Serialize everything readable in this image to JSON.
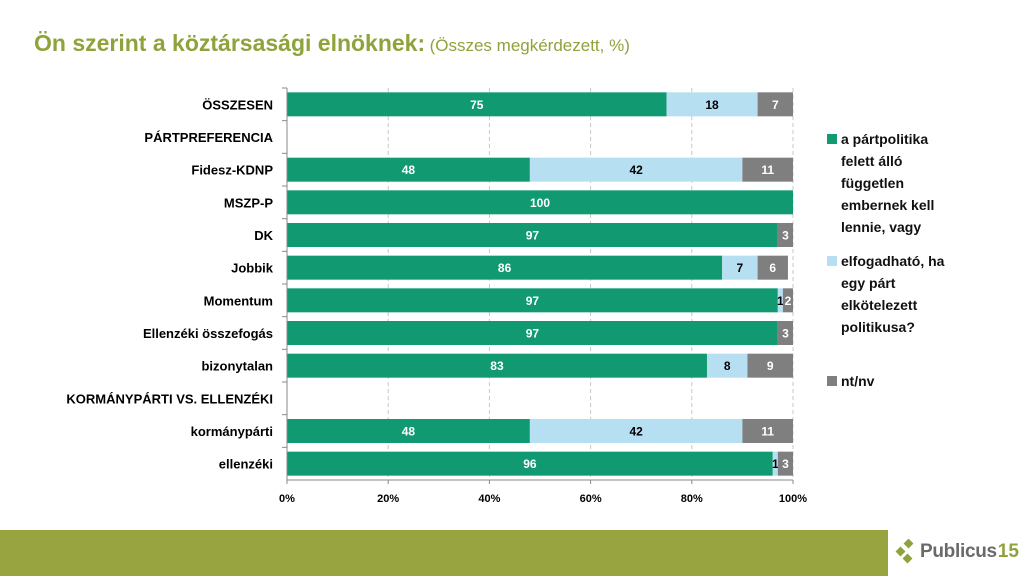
{
  "title": {
    "main": "Ön szerint a köztársasági elnöknek:",
    "sub": "(Összes megkérdezett, %)"
  },
  "colors": {
    "series1": "#119a72",
    "series2": "#b6dff2",
    "series3": "#7f7f7f",
    "title": "#8ea33c",
    "footer": "#98a43f"
  },
  "chart_data": {
    "type": "bar",
    "orientation": "horizontal",
    "stacked": "100%",
    "title": "Ön szerint a köztársasági elnöknek: (Összes megkérdezett, %)",
    "xlabel": "",
    "ylabel": "",
    "xlim": [
      0,
      100
    ],
    "grid": "vertical dashed",
    "legend_position": "right",
    "x_ticks": [
      "0%",
      "20%",
      "40%",
      "60%",
      "80%",
      "100%"
    ],
    "categories": [
      "ÖSSZESEN",
      "PÁRTPREFERENCIA",
      "Fidesz-KDNP",
      "MSZP-P",
      "DK",
      "Jobbik",
      "Momentum",
      "Ellenzéki összefogás",
      "bizonytalan",
      "KORMÁNYPÁRTI VS. ELLENZÉKI",
      "kormánypárti",
      "ellenzéki"
    ],
    "series": [
      {
        "name": "a pártpolitika felett álló független embernek kell lennie, vagy",
        "values": [
          75,
          null,
          48,
          100,
          97,
          86,
          97,
          97,
          83,
          null,
          48,
          96
        ]
      },
      {
        "name": "elfogadható, ha egy párt elkötelezett politikusa?",
        "values": [
          18,
          null,
          42,
          0,
          0,
          7,
          1,
          0,
          8,
          null,
          42,
          1
        ]
      },
      {
        "name": "nt/nv",
        "values": [
          7,
          null,
          11,
          0,
          3,
          6,
          2,
          3,
          9,
          null,
          11,
          3
        ]
      }
    ]
  },
  "legend": {
    "items": [
      {
        "lines": [
          "a pártpolitika",
          "felett álló",
          "független",
          "embernek kell",
          "lennie, vagy"
        ]
      },
      {
        "lines": [
          "elfogadható, ha",
          "egy párt",
          "elkötelezett",
          "politikusa?"
        ]
      },
      {
        "lines": [
          "nt/nv"
        ]
      }
    ]
  },
  "logo": {
    "text": "Publicus",
    "number": "15"
  }
}
